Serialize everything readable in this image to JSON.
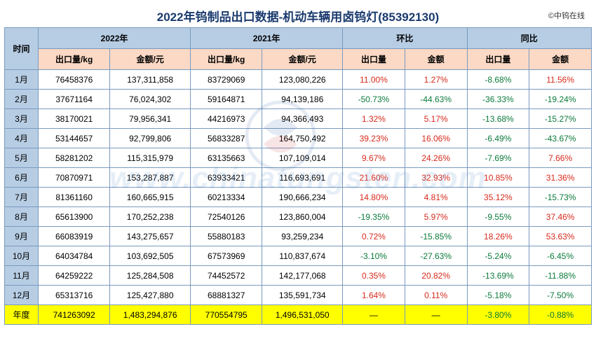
{
  "title": "2022年钨制品出口数据-机动车辆用卤钨灯(85392130)",
  "copyright": "©中钨在线",
  "watermark_text": "www.chinatungsten.com",
  "colors": {
    "header_blue": "#b7cde4",
    "header_peach": "#fbd9c5",
    "annual_yellow": "#ffff00",
    "border": "#7a9ac0",
    "title_color": "#1a3a6e",
    "pos_red": "#d72a1c",
    "neg_green": "#0a7a3a"
  },
  "headers": {
    "time": "时间",
    "y2022": "2022年",
    "y2021": "2021年",
    "mom": "环比",
    "yoy": "同比",
    "export_qty": "出口量/kg",
    "amount": "金额/元",
    "export_qty_s": "出口量",
    "amount_s": "金额"
  },
  "rows": [
    {
      "time": "1月",
      "q22": "76458376",
      "a22": "137,311,858",
      "q21": "83729069",
      "a21": "123,080,226",
      "momq": {
        "v": "11.00%",
        "c": "red"
      },
      "moma": {
        "v": "1.27%",
        "c": "red"
      },
      "yoyq": {
        "v": "-8.68%",
        "c": "green"
      },
      "yoya": {
        "v": "11.56%",
        "c": "red"
      }
    },
    {
      "time": "2月",
      "q22": "37671164",
      "a22": "76,024,302",
      "q21": "59164871",
      "a21": "94,139,186",
      "momq": {
        "v": "-50.73%",
        "c": "green"
      },
      "moma": {
        "v": "-44.63%",
        "c": "green"
      },
      "yoyq": {
        "v": "-36.33%",
        "c": "green"
      },
      "yoya": {
        "v": "-19.24%",
        "c": "green"
      }
    },
    {
      "time": "3月",
      "q22": "38170021",
      "a22": "79,956,341",
      "q21": "44216973",
      "a21": "94,366,493",
      "momq": {
        "v": "1.32%",
        "c": "red"
      },
      "moma": {
        "v": "5.17%",
        "c": "red"
      },
      "yoyq": {
        "v": "-13.68%",
        "c": "green"
      },
      "yoya": {
        "v": "-15.27%",
        "c": "green"
      }
    },
    {
      "time": "4月",
      "q22": "53144657",
      "a22": "92,799,806",
      "q21": "56833287",
      "a21": "164,750,492",
      "momq": {
        "v": "39.23%",
        "c": "red"
      },
      "moma": {
        "v": "16.06%",
        "c": "red"
      },
      "yoyq": {
        "v": "-6.49%",
        "c": "green"
      },
      "yoya": {
        "v": "-43.67%",
        "c": "green"
      }
    },
    {
      "time": "5月",
      "q22": "58281202",
      "a22": "115,315,979",
      "q21": "63135663",
      "a21": "107,109,014",
      "momq": {
        "v": "9.67%",
        "c": "red"
      },
      "moma": {
        "v": "24.26%",
        "c": "red"
      },
      "yoyq": {
        "v": "-7.69%",
        "c": "green"
      },
      "yoya": {
        "v": "7.66%",
        "c": "red"
      }
    },
    {
      "time": "6月",
      "q22": "70870971",
      "a22": "153,287,887",
      "q21": "63933421",
      "a21": "116,693,691",
      "momq": {
        "v": "21.60%",
        "c": "red"
      },
      "moma": {
        "v": "32.93%",
        "c": "red"
      },
      "yoyq": {
        "v": "10.85%",
        "c": "red"
      },
      "yoya": {
        "v": "31.36%",
        "c": "red"
      }
    },
    {
      "time": "7月",
      "q22": "81361160",
      "a22": "160,665,915",
      "q21": "60213334",
      "a21": "190,666,234",
      "momq": {
        "v": "14.80%",
        "c": "red"
      },
      "moma": {
        "v": "4.81%",
        "c": "red"
      },
      "yoyq": {
        "v": "35.12%",
        "c": "red"
      },
      "yoya": {
        "v": "-15.73%",
        "c": "green"
      }
    },
    {
      "time": "8月",
      "q22": "65613900",
      "a22": "170,252,238",
      "q21": "72540126",
      "a21": "123,860,004",
      "momq": {
        "v": "-19.35%",
        "c": "green"
      },
      "moma": {
        "v": "5.97%",
        "c": "red"
      },
      "yoyq": {
        "v": "-9.55%",
        "c": "green"
      },
      "yoya": {
        "v": "37.46%",
        "c": "red"
      }
    },
    {
      "time": "9月",
      "q22": "66083919",
      "a22": "143,275,657",
      "q21": "55880183",
      "a21": "93,259,234",
      "momq": {
        "v": "0.72%",
        "c": "red"
      },
      "moma": {
        "v": "-15.85%",
        "c": "green"
      },
      "yoyq": {
        "v": "18.26%",
        "c": "red"
      },
      "yoya": {
        "v": "53.63%",
        "c": "red"
      }
    },
    {
      "time": "10月",
      "q22": "64034784",
      "a22": "103,692,505",
      "q21": "67573969",
      "a21": "110,837,674",
      "momq": {
        "v": "-3.10%",
        "c": "green"
      },
      "moma": {
        "v": "-27.63%",
        "c": "green"
      },
      "yoyq": {
        "v": "-5.24%",
        "c": "green"
      },
      "yoya": {
        "v": "-6.45%",
        "c": "green"
      }
    },
    {
      "time": "11月",
      "q22": "64259222",
      "a22": "125,284,508",
      "q21": "74452572",
      "a21": "142,177,068",
      "momq": {
        "v": "0.35%",
        "c": "red"
      },
      "moma": {
        "v": "20.82%",
        "c": "red"
      },
      "yoyq": {
        "v": "-13.69%",
        "c": "green"
      },
      "yoya": {
        "v": "-11.88%",
        "c": "green"
      }
    },
    {
      "time": "12月",
      "q22": "65313716",
      "a22": "125,427,880",
      "q21": "68881327",
      "a21": "135,591,734",
      "momq": {
        "v": "1.64%",
        "c": "red"
      },
      "moma": {
        "v": "0.11%",
        "c": "red"
      },
      "yoyq": {
        "v": "-5.18%",
        "c": "green"
      },
      "yoya": {
        "v": "-7.50%",
        "c": "green"
      }
    }
  ],
  "annual": {
    "time": "年度",
    "q22": "741263092",
    "a22": "1,483,294,876",
    "q21": "770554795",
    "a21": "1,496,531,050",
    "momq": {
      "v": "—",
      "c": "black"
    },
    "moma": {
      "v": "—",
      "c": "black"
    },
    "yoyq": {
      "v": "-3.80%",
      "c": "green"
    },
    "yoya": {
      "v": "-0.88%",
      "c": "green"
    }
  }
}
